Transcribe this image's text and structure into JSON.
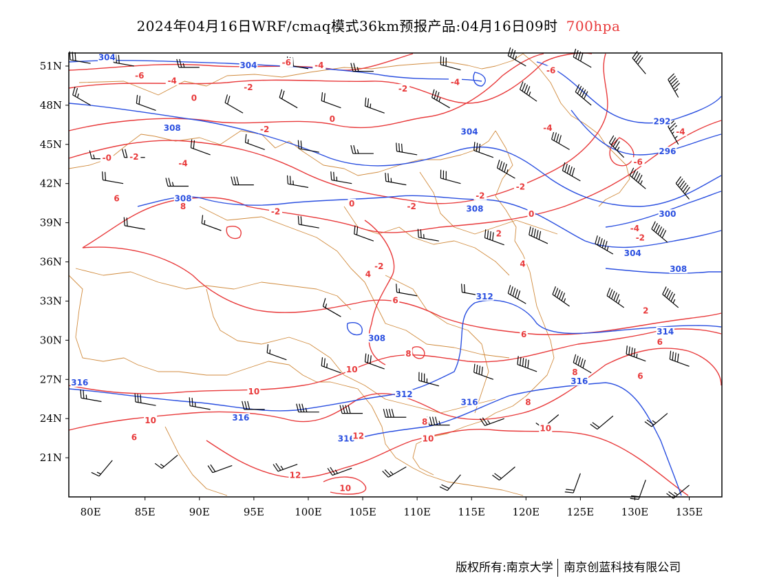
{
  "title": {
    "main": "2024年04月16日WRF/cmaq模式36km预报产品:04月16日09时",
    "level": "700hpa",
    "level_color": "#e8393a"
  },
  "axes": {
    "lon_labels": [
      "80E",
      "85E",
      "90E",
      "95E",
      "100E",
      "105E",
      "110E",
      "115E",
      "120E",
      "125E",
      "130E",
      "135E"
    ],
    "lat_labels": [
      "51N",
      "48N",
      "45N",
      "42N",
      "39N",
      "36N",
      "33N",
      "30N",
      "27N",
      "24N",
      "21N"
    ],
    "lon_range": [
      78,
      138
    ],
    "lat_range": [
      18,
      52
    ]
  },
  "colors": {
    "geopotential_contour": "#2a4fe0",
    "temperature_contour": "#e8393a",
    "boundary": "#d08a3c",
    "wind_barb": "#000000"
  },
  "contour_labels": {
    "geopotential": [
      {
        "text": "304",
        "lon": 81.5,
        "lat": 51.6
      },
      {
        "text": "304",
        "lon": 94.5,
        "lat": 51.0
      },
      {
        "text": "308",
        "lon": 87.5,
        "lat": 46.2
      },
      {
        "text": "308",
        "lon": 88.5,
        "lat": 40.8
      },
      {
        "text": "304",
        "lon": 114.8,
        "lat": 45.9
      },
      {
        "text": "308",
        "lon": 115.3,
        "lat": 40.0
      },
      {
        "text": "292",
        "lon": 132.5,
        "lat": 46.7
      },
      {
        "text": "296",
        "lon": 133.0,
        "lat": 44.4
      },
      {
        "text": "300",
        "lon": 133.0,
        "lat": 39.6
      },
      {
        "text": "304",
        "lon": 129.8,
        "lat": 36.6
      },
      {
        "text": "308",
        "lon": 134.0,
        "lat": 35.4
      },
      {
        "text": "312",
        "lon": 116.2,
        "lat": 33.3
      },
      {
        "text": "314",
        "lon": 132.8,
        "lat": 30.6
      },
      {
        "text": "308",
        "lon": 106.3,
        "lat": 30.1
      },
      {
        "text": "312",
        "lon": 108.8,
        "lat": 25.8
      },
      {
        "text": "316",
        "lon": 79.0,
        "lat": 26.7
      },
      {
        "text": "316",
        "lon": 93.8,
        "lat": 24.0
      },
      {
        "text": "316",
        "lon": 103.5,
        "lat": 22.4
      },
      {
        "text": "316",
        "lon": 114.8,
        "lat": 25.2
      },
      {
        "text": "316",
        "lon": 124.9,
        "lat": 26.8
      }
    ],
    "temperature": [
      {
        "text": "-6",
        "lon": 84.5,
        "lat": 50.2
      },
      {
        "text": "-6",
        "lon": 98.0,
        "lat": 51.2
      },
      {
        "text": "-4",
        "lon": 101.0,
        "lat": 51.0
      },
      {
        "text": "-4",
        "lon": 87.5,
        "lat": 49.8
      },
      {
        "text": "-2",
        "lon": 94.5,
        "lat": 49.3
      },
      {
        "text": "-2",
        "lon": 108.7,
        "lat": 49.2
      },
      {
        "text": "-4",
        "lon": 113.5,
        "lat": 49.7
      },
      {
        "text": "-6",
        "lon": 122.3,
        "lat": 50.6
      },
      {
        "text": "0",
        "lon": 89.5,
        "lat": 48.5
      },
      {
        "text": "0",
        "lon": 102.2,
        "lat": 46.9
      },
      {
        "text": "-2",
        "lon": 96.0,
        "lat": 46.1
      },
      {
        "text": "-4",
        "lon": 122.0,
        "lat": 46.2
      },
      {
        "text": "-4",
        "lon": 134.2,
        "lat": 45.9
      },
      {
        "text": "-0",
        "lon": 81.5,
        "lat": 43.9
      },
      {
        "text": "-2",
        "lon": 84.0,
        "lat": 44.0
      },
      {
        "text": "-4",
        "lon": 88.5,
        "lat": 43.5
      },
      {
        "text": "-6",
        "lon": 130.3,
        "lat": 43.6
      },
      {
        "text": "-2",
        "lon": 109.5,
        "lat": 40.2
      },
      {
        "text": "-2",
        "lon": 115.8,
        "lat": 41.0
      },
      {
        "text": "-2",
        "lon": 119.5,
        "lat": 41.7
      },
      {
        "text": "-2",
        "lon": 97.0,
        "lat": 39.8
      },
      {
        "text": "0",
        "lon": 104.0,
        "lat": 40.4
      },
      {
        "text": "0",
        "lon": 120.5,
        "lat": 39.6
      },
      {
        "text": "2",
        "lon": 117.5,
        "lat": 38.1
      },
      {
        "text": "-2",
        "lon": 130.5,
        "lat": 37.8
      },
      {
        "text": "-4",
        "lon": 130.0,
        "lat": 38.5
      },
      {
        "text": "6",
        "lon": 82.4,
        "lat": 40.8
      },
      {
        "text": "8",
        "lon": 88.5,
        "lat": 40.2
      },
      {
        "text": "-2",
        "lon": 106.5,
        "lat": 35.6
      },
      {
        "text": "4",
        "lon": 105.5,
        "lat": 35.0
      },
      {
        "text": "4",
        "lon": 119.7,
        "lat": 35.8
      },
      {
        "text": "6",
        "lon": 108.0,
        "lat": 33.0
      },
      {
        "text": "2",
        "lon": 131.0,
        "lat": 32.2
      },
      {
        "text": "6",
        "lon": 119.8,
        "lat": 30.4
      },
      {
        "text": "6",
        "lon": 132.3,
        "lat": 29.8
      },
      {
        "text": "8",
        "lon": 109.2,
        "lat": 28.9
      },
      {
        "text": "10",
        "lon": 104.0,
        "lat": 27.7
      },
      {
        "text": "6",
        "lon": 130.5,
        "lat": 27.2
      },
      {
        "text": "8",
        "lon": 124.5,
        "lat": 27.5
      },
      {
        "text": "8",
        "lon": 120.2,
        "lat": 25.2
      },
      {
        "text": "10",
        "lon": 95.0,
        "lat": 26.0
      },
      {
        "text": "10",
        "lon": 85.5,
        "lat": 23.8
      },
      {
        "text": "8",
        "lon": 110.7,
        "lat": 23.7
      },
      {
        "text": "10",
        "lon": 121.8,
        "lat": 23.2
      },
      {
        "text": "10",
        "lon": 111.0,
        "lat": 22.4
      },
      {
        "text": "12",
        "lon": 104.6,
        "lat": 22.6
      },
      {
        "text": "12",
        "lon": 98.8,
        "lat": 19.6
      },
      {
        "text": "10",
        "lon": 103.4,
        "lat": 18.6
      },
      {
        "text": "6",
        "lon": 84.0,
        "lat": 22.5
      }
    ]
  },
  "wind_barbs": [
    [
      80,
      51.2,
      280,
      12
    ],
    [
      84,
      51.0,
      280,
      12
    ],
    [
      90,
      50.9,
      270,
      10
    ],
    [
      100,
      50.8,
      280,
      12
    ],
    [
      106,
      50.6,
      270,
      10
    ],
    [
      114,
      50.7,
      285,
      12
    ],
    [
      120,
      51.0,
      300,
      14
    ],
    [
      126,
      50.9,
      300,
      16
    ],
    [
      131,
      50.4,
      320,
      16
    ],
    [
      80,
      48.0,
      300,
      10
    ],
    [
      86,
      47.6,
      290,
      8
    ],
    [
      94,
      47.4,
      300,
      8
    ],
    [
      99,
      47.8,
      300,
      8
    ],
    [
      103,
      47.8,
      290,
      8
    ],
    [
      107,
      47.4,
      290,
      10
    ],
    [
      113,
      47.8,
      300,
      14
    ],
    [
      121,
      48.3,
      305,
      18
    ],
    [
      126,
      48.0,
      310,
      20
    ],
    [
      134,
      48.6,
      330,
      22
    ],
    [
      82,
      43.9,
      270,
      6
    ],
    [
      85,
      44.0,
      270,
      8
    ],
    [
      91,
      44.2,
      290,
      8
    ],
    [
      96,
      44.6,
      290,
      6
    ],
    [
      101,
      44.4,
      280,
      8
    ],
    [
      106,
      44.3,
      270,
      10
    ],
    [
      110,
      44.2,
      280,
      12
    ],
    [
      117,
      44.0,
      290,
      12
    ],
    [
      124,
      44.6,
      300,
      16
    ],
    [
      129,
      44.0,
      315,
      18
    ],
    [
      134,
      45.0,
      330,
      22
    ],
    [
      83,
      42.0,
      280,
      8
    ],
    [
      89,
      41.8,
      270,
      10
    ],
    [
      95,
      41.9,
      270,
      12
    ],
    [
      100,
      41.7,
      280,
      10
    ],
    [
      104,
      42.0,
      280,
      10
    ],
    [
      109,
      41.9,
      280,
      10
    ],
    [
      114,
      42.0,
      285,
      12
    ],
    [
      119,
      42.4,
      300,
      18
    ],
    [
      125,
      42.2,
      300,
      20
    ],
    [
      131,
      41.6,
      310,
      22
    ],
    [
      135,
      40.8,
      320,
      24
    ],
    [
      85,
      38.5,
      280,
      8
    ],
    [
      92,
      38.4,
      290,
      6
    ],
    [
      101,
      38.6,
      280,
      8
    ],
    [
      106,
      37.6,
      290,
      8
    ],
    [
      112,
      37.6,
      280,
      10
    ],
    [
      118,
      37.3,
      290,
      16
    ],
    [
      122,
      37.4,
      295,
      20
    ],
    [
      128,
      36.6,
      300,
      22
    ],
    [
      133,
      37.5,
      310,
      24
    ],
    [
      103,
      31.8,
      300,
      6
    ],
    [
      110,
      33.4,
      280,
      6
    ],
    [
      116,
      33.4,
      280,
      8
    ],
    [
      120,
      32.8,
      300,
      20
    ],
    [
      124,
      32.6,
      305,
      22
    ],
    [
      129,
      32.5,
      305,
      22
    ],
    [
      134,
      32.5,
      310,
      22
    ],
    [
      98,
      28.5,
      290,
      6
    ],
    [
      103,
      27.5,
      290,
      10
    ],
    [
      107,
      27.8,
      290,
      12
    ],
    [
      112,
      26.5,
      285,
      14
    ],
    [
      117,
      27.0,
      290,
      16
    ],
    [
      121,
      27.6,
      290,
      20
    ],
    [
      126,
      27.5,
      300,
      20
    ],
    [
      131,
      28.4,
      290,
      18
    ],
    [
      135,
      28.0,
      290,
      16
    ],
    [
      81,
      25.3,
      280,
      10
    ],
    [
      86,
      25.0,
      280,
      12
    ],
    [
      91,
      24.7,
      280,
      10
    ],
    [
      96,
      24.7,
      270,
      12
    ],
    [
      101,
      24.5,
      270,
      14
    ],
    [
      105,
      24.4,
      270,
      16
    ],
    [
      109,
      24.1,
      270,
      16
    ],
    [
      113,
      23.5,
      270,
      18
    ],
    [
      118,
      24.0,
      250,
      10
    ],
    [
      123,
      24.3,
      230,
      6
    ],
    [
      128,
      24.2,
      230,
      8
    ],
    [
      133,
      24.4,
      230,
      10
    ],
    [
      82,
      20.8,
      220,
      6
    ],
    [
      88,
      21.2,
      230,
      6
    ],
    [
      93,
      20.4,
      250,
      8
    ],
    [
      99,
      20.5,
      250,
      10
    ],
    [
      104,
      20.2,
      250,
      10
    ],
    [
      109,
      20.3,
      240,
      10
    ],
    [
      114,
      19.7,
      220,
      8
    ],
    [
      119,
      20.3,
      230,
      8
    ],
    [
      125,
      19.8,
      200,
      8
    ],
    [
      131,
      19.3,
      200,
      8
    ],
    [
      135,
      18.9,
      230,
      10
    ]
  ],
  "footer": {
    "copyright": "版权所有:",
    "org1": "南京大学",
    "org2": "南京创蓝科技有限公司"
  }
}
